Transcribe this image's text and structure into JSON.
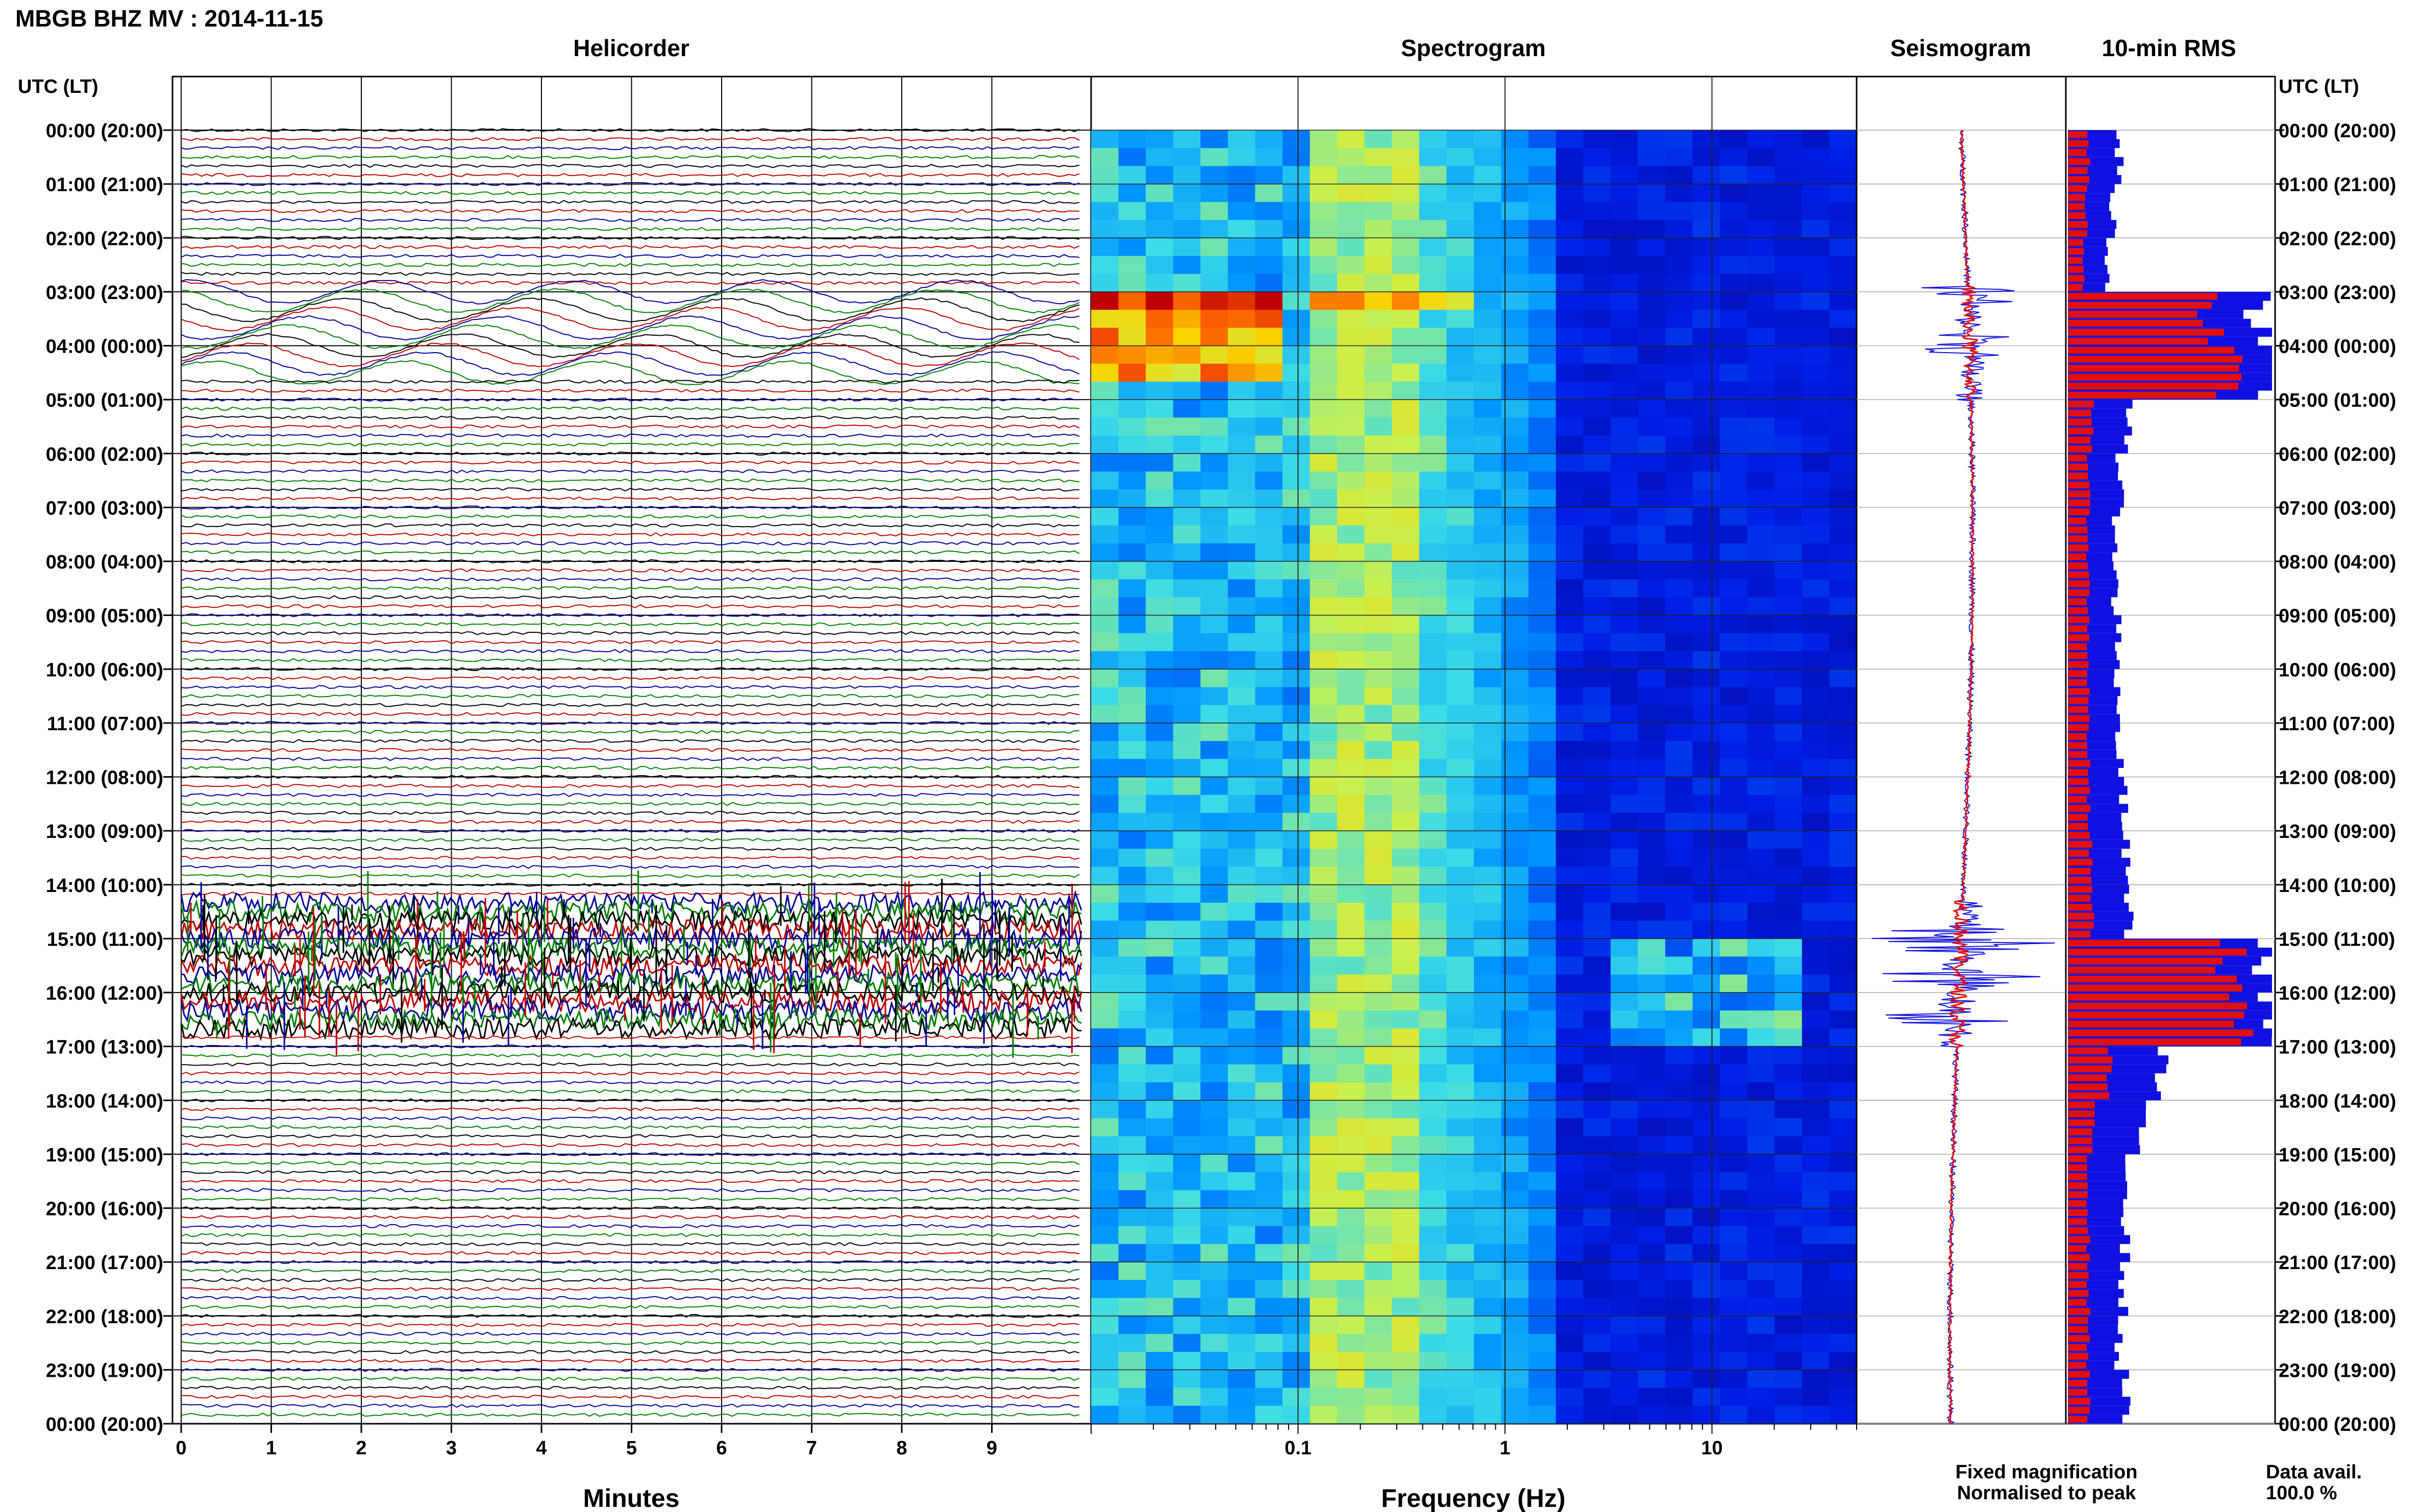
{
  "header": {
    "title": "MBGB BHZ MV : 2014-11-15"
  },
  "panels": {
    "helicorder": "Helicorder",
    "spectrogram": "Spectrogram",
    "seismogram": "Seismogram",
    "rms": "10-min RMS"
  },
  "axis": {
    "time_label": "UTC (LT)",
    "minutes_label": "Minutes",
    "frequency_label": "Frequency (Hz)"
  },
  "legend": {
    "fixed": "Fixed magnification",
    "normalised": "Normalised to peak",
    "fixed_color": "#1010e0",
    "normalised_color": "#e01010"
  },
  "data_avail": {
    "label": "Data avail.",
    "value": "100.0 %"
  },
  "chart_data": {
    "type": "heatmap",
    "date": "2014-11-15",
    "station": "MBGB BHZ MV",
    "time_ticks": [
      "00:00 (20:00)",
      "01:00 (21:00)",
      "02:00 (22:00)",
      "03:00 (23:00)",
      "04:00 (00:00)",
      "05:00 (01:00)",
      "06:00 (02:00)",
      "07:00 (03:00)",
      "08:00 (04:00)",
      "09:00 (05:00)",
      "10:00 (06:00)",
      "11:00 (07:00)",
      "12:00 (08:00)",
      "13:00 (09:00)",
      "14:00 (10:00)",
      "15:00 (11:00)",
      "16:00 (12:00)",
      "17:00 (13:00)",
      "18:00 (14:00)",
      "19:00 (15:00)",
      "20:00 (16:00)",
      "21:00 (17:00)",
      "22:00 (18:00)",
      "23:00 (19:00)",
      "00:00 (20:00)"
    ],
    "minutes_ticks": [
      "0",
      "1",
      "2",
      "3",
      "4",
      "5",
      "6",
      "7",
      "8",
      "9"
    ],
    "minutes_range": [
      0,
      10
    ],
    "frequency_ticks": [
      {
        "value": 0.1,
        "label": "0.1"
      },
      {
        "value": 1,
        "label": "1"
      },
      {
        "value": 10,
        "label": "10"
      }
    ],
    "frequency_range": [
      0.01,
      50
    ],
    "frequency_scale": "log",
    "trace_colors": [
      "#000000",
      "#c00000",
      "#00009a",
      "#008000"
    ],
    "rms_hourly": {
      "hours": [
        0,
        1,
        2,
        3,
        4,
        5,
        6,
        7,
        8,
        9,
        10,
        11,
        12,
        13,
        14,
        15,
        16,
        17,
        18,
        19,
        20,
        21,
        22,
        23
      ],
      "fixed": [
        0.25,
        0.22,
        0.2,
        0.95,
        1.0,
        0.3,
        0.25,
        0.24,
        0.23,
        0.25,
        0.24,
        0.25,
        0.27,
        0.28,
        0.3,
        1.0,
        1.0,
        0.45,
        0.35,
        0.3,
        0.28,
        0.27,
        0.25,
        0.28
      ],
      "normalised": [
        0.1,
        0.09,
        0.08,
        0.7,
        0.78,
        0.12,
        0.1,
        0.1,
        0.1,
        0.1,
        0.1,
        0.1,
        0.1,
        0.11,
        0.12,
        0.8,
        0.85,
        0.2,
        0.12,
        0.1,
        0.1,
        0.1,
        0.1,
        0.1
      ]
    }
  }
}
